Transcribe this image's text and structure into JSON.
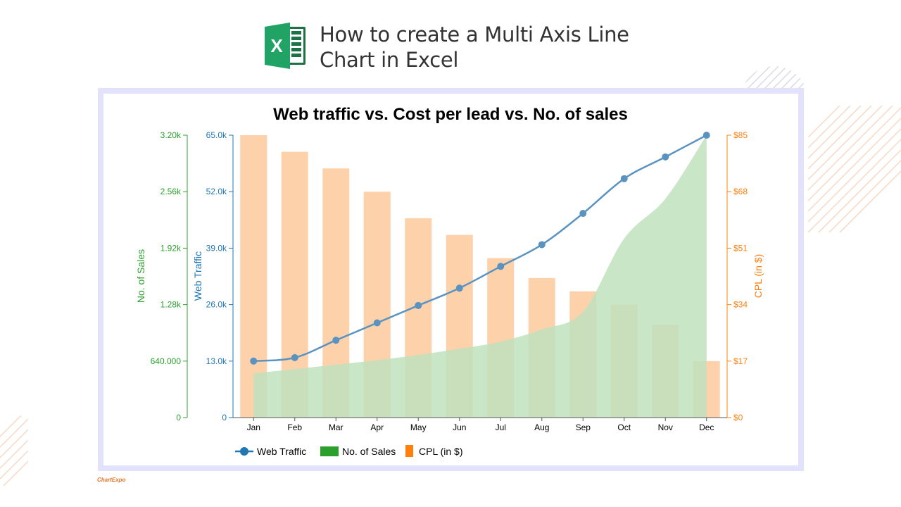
{
  "header": {
    "title_line1": "How to create a Multi Axis Line",
    "title_line2": "Chart in Excel",
    "icon": "excel-logo-icon"
  },
  "brand": {
    "text": "ChartExpo"
  },
  "colors": {
    "traffic": "#5b93c0",
    "sales": "#2ca02c",
    "sales_fill": "#bfe2bd",
    "cpl": "#ff7f0e",
    "cpl_fill": "#fdd2ab",
    "frame": "#e3e2fc"
  },
  "chart_data": {
    "type": "line",
    "title": "Web traffic vs. Cost per lead vs. No. of sales",
    "categories": [
      "Jan",
      "Feb",
      "Mar",
      "Apr",
      "May",
      "Jun",
      "Jul",
      "Aug",
      "Sep",
      "Oct",
      "Nov",
      "Dec"
    ],
    "axes": {
      "sales": {
        "label": "No. of Sales",
        "ticks": [
          "0",
          "640.000",
          "1.28k",
          "1.92k",
          "2.56k",
          "3.20k"
        ],
        "range": [
          0,
          3200
        ]
      },
      "traffic": {
        "label": "Web Traffic",
        "ticks": [
          "0",
          "13.0k",
          "26.0k",
          "39.0k",
          "52.0k",
          "65.0k"
        ],
        "range": [
          0,
          65000
        ]
      },
      "cpl": {
        "label": "CPL (in $)",
        "ticks": [
          "$0",
          "$17",
          "$34",
          "$51",
          "$68",
          "$85"
        ],
        "range": [
          0,
          85
        ]
      }
    },
    "series": [
      {
        "name": "Web Traffic",
        "kind": "line",
        "axis": "traffic",
        "values": [
          13000,
          13800,
          17800,
          21800,
          25800,
          29800,
          34800,
          39800,
          47000,
          55000,
          60000,
          65000
        ]
      },
      {
        "name": "No. of Sales",
        "kind": "area",
        "axis": "sales",
        "values": [
          500,
          550,
          600,
          650,
          710,
          780,
          860,
          1000,
          1200,
          2030,
          2480,
          3200
        ]
      },
      {
        "name": "CPL (in $)",
        "kind": "bar",
        "axis": "cpl",
        "values": [
          85,
          80,
          75,
          68,
          60,
          55,
          48,
          42,
          38,
          34,
          28,
          17
        ]
      }
    ],
    "legend": [
      "Web Traffic",
      "No. of Sales",
      "CPL (in $)"
    ],
    "legend_position": "bottom",
    "grid": false
  }
}
